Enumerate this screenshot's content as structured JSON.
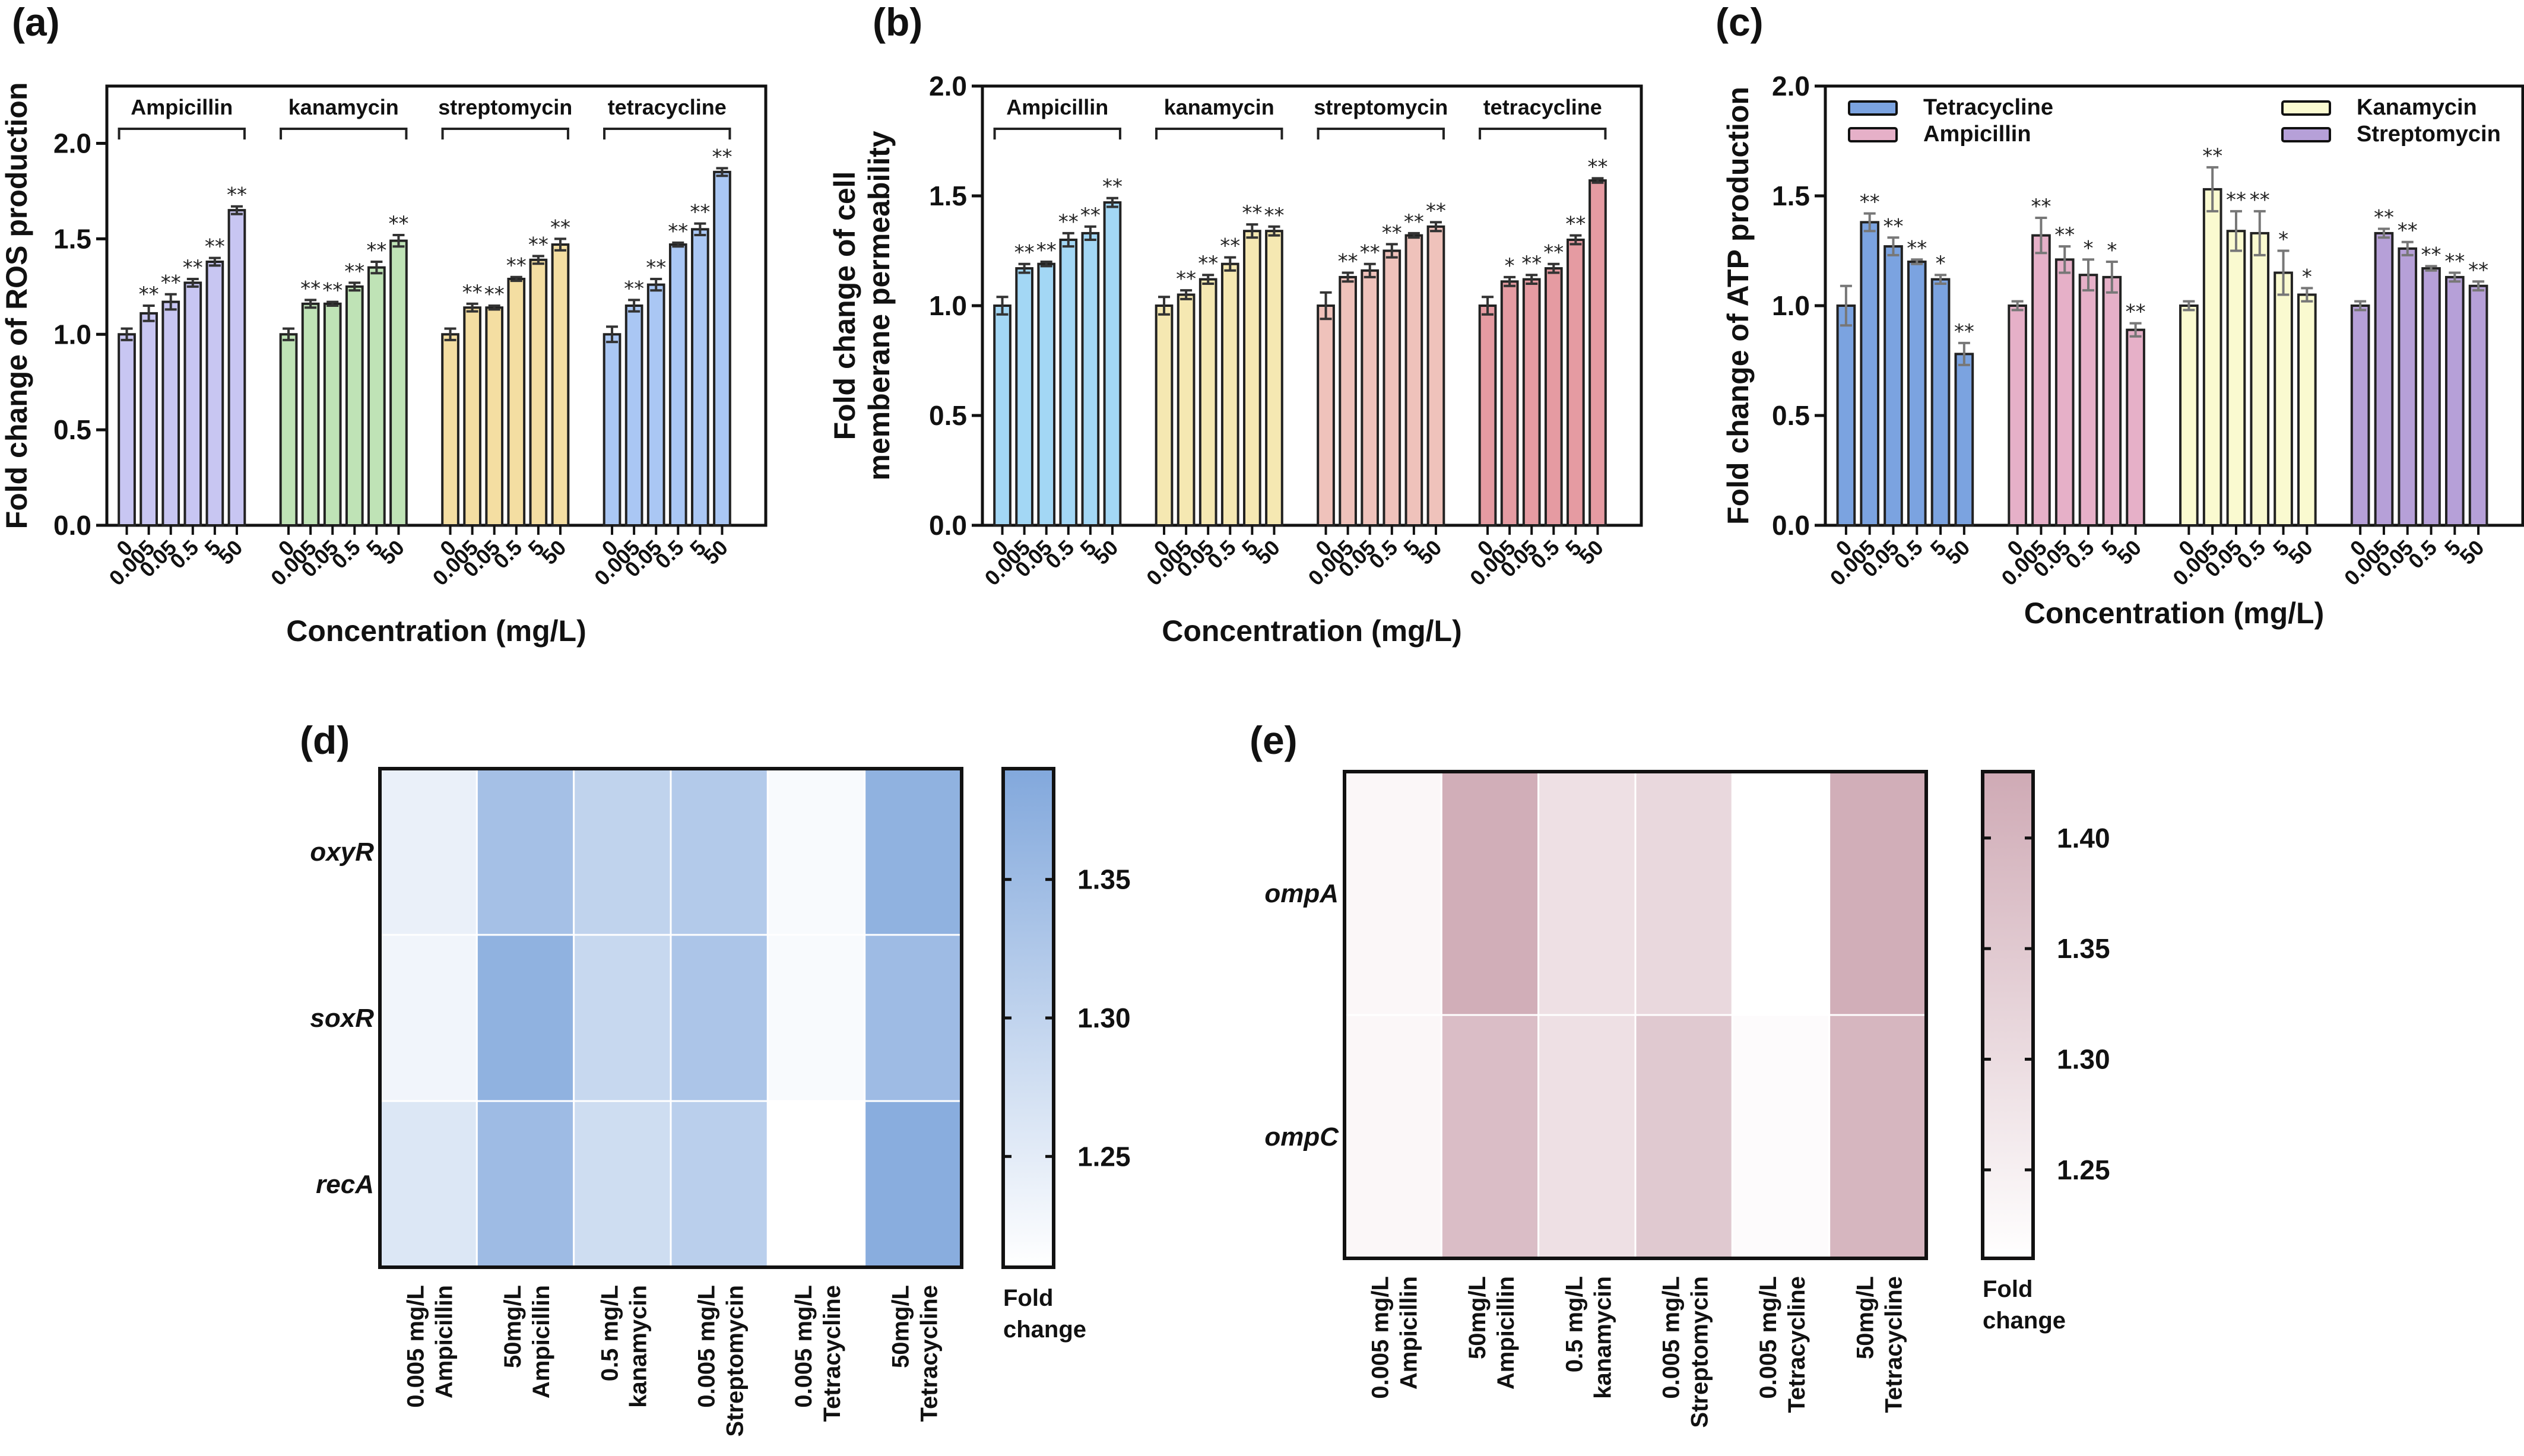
{
  "chart_data": [
    {
      "id": "a",
      "panel_label": "(a)",
      "type": "bar",
      "ylabel": "Fold change of ROS production",
      "xlabel": "Concentration (mg/L)",
      "ylim": [
        0,
        2.3
      ],
      "yticks": [
        "0.0",
        "0.5",
        "1.0",
        "1.5",
        "2.0"
      ],
      "ytick_values": [
        0,
        0.5,
        1.0,
        1.5,
        2.0
      ],
      "categories": [
        "0",
        "0.005",
        "0.05",
        "0.5",
        "5",
        "50"
      ],
      "group_labels_position": "top",
      "series": [
        {
          "name": "Ampicillin",
          "color": "#c8c6f2",
          "values": [
            1.0,
            1.11,
            1.17,
            1.27,
            1.38,
            1.65
          ],
          "errors": [
            0.03,
            0.04,
            0.04,
            0.02,
            0.02,
            0.02
          ],
          "sig": [
            "",
            "**",
            "**",
            "**",
            "**",
            "**"
          ]
        },
        {
          "name": "kanamycin",
          "color": "#bfe3b6",
          "values": [
            1.0,
            1.16,
            1.16,
            1.25,
            1.35,
            1.49
          ],
          "errors": [
            0.03,
            0.02,
            0.01,
            0.02,
            0.03,
            0.03
          ],
          "sig": [
            "",
            "**",
            "**",
            "**",
            "**",
            "**"
          ]
        },
        {
          "name": "streptomycin",
          "color": "#f4dea2",
          "values": [
            1.0,
            1.14,
            1.14,
            1.29,
            1.39,
            1.47
          ],
          "errors": [
            0.03,
            0.02,
            0.01,
            0.01,
            0.02,
            0.03
          ],
          "sig": [
            "",
            "**",
            "**",
            "**",
            "**",
            "**"
          ]
        },
        {
          "name": "tetracycline",
          "color": "#aac7f4",
          "values": [
            1.0,
            1.15,
            1.26,
            1.47,
            1.55,
            1.85
          ],
          "errors": [
            0.04,
            0.03,
            0.03,
            0.01,
            0.03,
            0.02
          ],
          "sig": [
            "",
            "**",
            "**",
            "**",
            "**",
            "**"
          ]
        }
      ]
    },
    {
      "id": "b",
      "panel_label": "(b)",
      "type": "bar",
      "ylabel": [
        "Fold change of cell",
        "memberane permeability"
      ],
      "xlabel": "Concentration (mg/L)",
      "ylim": [
        0,
        2.0
      ],
      "yticks": [
        "0.0",
        "0.5",
        "1.0",
        "1.5",
        "2.0"
      ],
      "ytick_values": [
        0,
        0.5,
        1.0,
        1.5,
        2.0
      ],
      "categories": [
        "0",
        "0.005",
        "0.05",
        "0.5",
        "5",
        "50"
      ],
      "group_labels_position": "top",
      "series": [
        {
          "name": "Ampicillin",
          "color": "#a3d7f5",
          "values": [
            1.0,
            1.17,
            1.19,
            1.3,
            1.33,
            1.47
          ],
          "errors": [
            0.04,
            0.02,
            0.01,
            0.03,
            0.03,
            0.02
          ],
          "sig": [
            "",
            "**",
            "**",
            "**",
            "**",
            "**"
          ]
        },
        {
          "name": "kanamycin",
          "color": "#f5e8b2",
          "values": [
            1.0,
            1.05,
            1.12,
            1.19,
            1.34,
            1.34
          ],
          "errors": [
            0.04,
            0.02,
            0.02,
            0.03,
            0.03,
            0.02
          ],
          "sig": [
            "",
            "**",
            "**",
            "**",
            "**",
            "**"
          ]
        },
        {
          "name": "streptomycin",
          "color": "#efc2bb",
          "values": [
            1.0,
            1.13,
            1.16,
            1.25,
            1.32,
            1.36
          ],
          "errors": [
            0.06,
            0.02,
            0.03,
            0.03,
            0.01,
            0.02
          ],
          "sig": [
            "",
            "**",
            "**",
            "**",
            "**",
            "**"
          ]
        },
        {
          "name": "tetracycline",
          "color": "#e59ba2",
          "values": [
            1.0,
            1.11,
            1.12,
            1.17,
            1.3,
            1.57
          ],
          "errors": [
            0.04,
            0.02,
            0.02,
            0.02,
            0.02,
            0.01
          ],
          "sig": [
            "",
            "*",
            "**",
            "**",
            "**",
            "**"
          ]
        }
      ]
    },
    {
      "id": "c",
      "panel_label": "(c)",
      "type": "bar",
      "ylabel": "Fold change of ATP production",
      "xlabel": "Concentration (mg/L)",
      "ylim": [
        0,
        2.0
      ],
      "yticks": [
        "0.0",
        "0.5",
        "1.0",
        "1.5",
        "2.0"
      ],
      "ytick_values": [
        0,
        0.5,
        1.0,
        1.5,
        2.0
      ],
      "categories": [
        "0",
        "0.005",
        "0.05",
        "0.5",
        "5",
        "50"
      ],
      "legend_position": "top",
      "series": [
        {
          "name": "Tetracycline",
          "color": "#7ba3e0",
          "values": [
            1.0,
            1.38,
            1.27,
            1.2,
            1.12,
            0.78
          ],
          "errors": [
            0.09,
            0.04,
            0.04,
            0.01,
            0.02,
            0.05
          ],
          "sig": [
            "",
            "**",
            "**",
            "**",
            "*",
            "**"
          ]
        },
        {
          "name": "Ampicillin",
          "color": "#e6b0c8",
          "values": [
            1.0,
            1.32,
            1.21,
            1.14,
            1.13,
            0.89
          ],
          "errors": [
            0.02,
            0.08,
            0.06,
            0.07,
            0.07,
            0.03
          ],
          "sig": [
            "",
            "**",
            "**",
            "*",
            "*",
            "**"
          ]
        },
        {
          "name": "Kanamycin",
          "color": "#fafad0",
          "values": [
            1.0,
            1.53,
            1.34,
            1.33,
            1.15,
            1.05
          ],
          "errors": [
            0.02,
            0.1,
            0.09,
            0.1,
            0.1,
            0.03
          ],
          "sig": [
            "",
            "**",
            "**",
            "**",
            "*",
            "*"
          ]
        },
        {
          "name": "Streptomycin",
          "color": "#b6a0d8",
          "values": [
            1.0,
            1.33,
            1.26,
            1.17,
            1.13,
            1.09
          ],
          "errors": [
            0.02,
            0.02,
            0.03,
            0.01,
            0.02,
            0.02
          ],
          "sig": [
            "",
            "**",
            "**",
            "**",
            "**",
            "**"
          ]
        }
      ]
    },
    {
      "id": "d",
      "panel_label": "(d)",
      "type": "heatmap",
      "rows": [
        "oxyR",
        "soxR",
        "recA"
      ],
      "columns": [
        [
          "0.005 mg/L",
          "Ampicillin"
        ],
        [
          "50mg/L",
          "Ampicillin"
        ],
        [
          "0.5 mg/L",
          "kanamycin"
        ],
        [
          "0.005 mg/L",
          "Streptomycin"
        ],
        [
          "0.005 mg/L",
          "Tetracycline"
        ],
        [
          "50mg/L",
          "Tetracycline"
        ]
      ],
      "values": [
        [
          1.24,
          1.34,
          1.3,
          1.32,
          1.22,
          1.37
        ],
        [
          1.23,
          1.37,
          1.29,
          1.33,
          1.22,
          1.35
        ],
        [
          1.26,
          1.35,
          1.28,
          1.31,
          1.21,
          1.38
        ]
      ],
      "colorbar": {
        "title": [
          "Fold",
          "change"
        ],
        "min": 1.21,
        "max": 1.39,
        "ticks": [
          1.25,
          1.3,
          1.35
        ],
        "tick_labels": [
          "1.25",
          "1.30",
          "1.35"
        ],
        "low_color": "#ffffff",
        "high_color": "#82a8dc"
      }
    },
    {
      "id": "e",
      "panel_label": "(e)",
      "type": "heatmap",
      "rows": [
        "ompA",
        "ompC"
      ],
      "columns": [
        [
          "0.005 mg/L",
          "Ampicillin"
        ],
        [
          "50mg/L",
          "Ampicillin"
        ],
        [
          "0.5 mg/L",
          "kanamycin"
        ],
        [
          "0.005 mg/L",
          "Streptomycin"
        ],
        [
          "0.005 mg/L",
          "Tetracycline"
        ],
        [
          "50mg/L",
          "Tetracycline"
        ]
      ],
      "values": [
        [
          1.23,
          1.42,
          1.29,
          1.31,
          1.21,
          1.42
        ],
        [
          1.23,
          1.38,
          1.29,
          1.35,
          1.22,
          1.4
        ]
      ],
      "colorbar": {
        "title": [
          "Fold",
          "change"
        ],
        "min": 1.21,
        "max": 1.43,
        "ticks": [
          1.25,
          1.3,
          1.35,
          1.4
        ],
        "tick_labels": [
          "1.25",
          "1.30",
          "1.35",
          "1.40"
        ],
        "low_color": "#ffffff",
        "high_color": "#cfaab5"
      }
    }
  ]
}
